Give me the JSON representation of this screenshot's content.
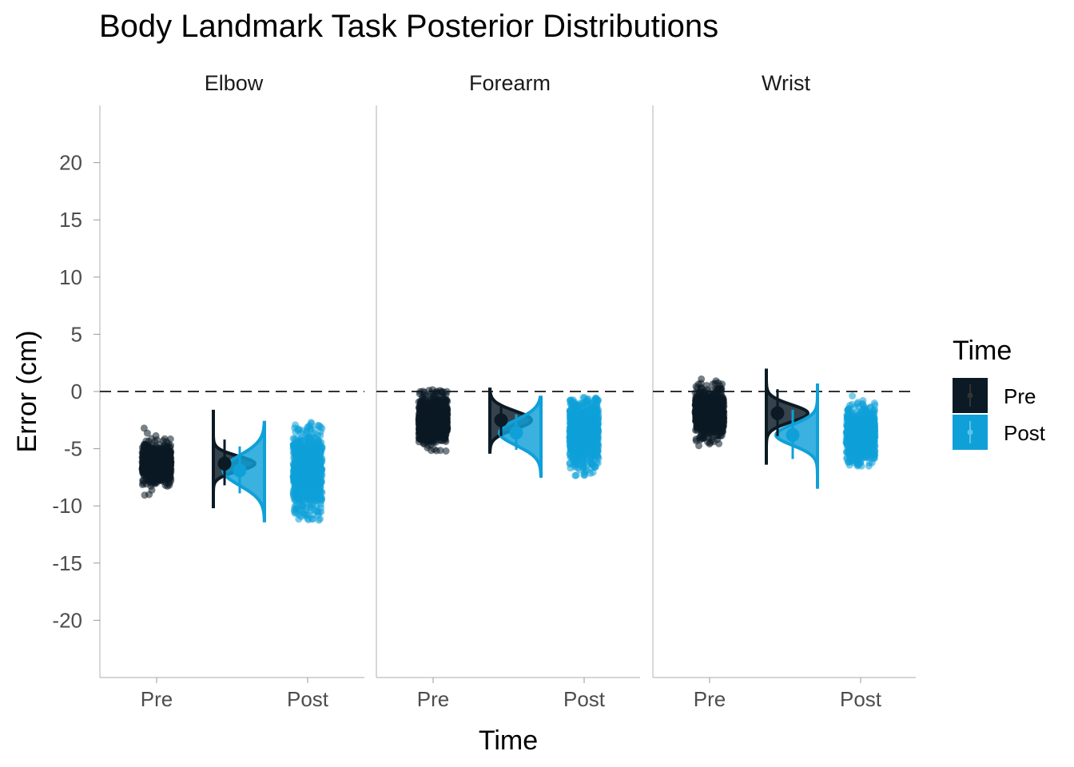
{
  "chart_data": {
    "type": "raincloud",
    "title": "Body Landmark Task Posterior Distributions",
    "xlabel": "Time",
    "ylabel": "Error (cm)",
    "ylim": [
      -25,
      25
    ],
    "yticks": [
      20,
      15,
      10,
      5,
      0,
      -5,
      -10,
      -15,
      -20
    ],
    "reference_line": {
      "y": 0,
      "style": "dashed"
    },
    "categories": [
      "Pre",
      "Post"
    ],
    "legend": {
      "title": "Time",
      "entries": [
        "Pre",
        "Post"
      ],
      "position": "right"
    },
    "colors": {
      "Pre": "#0b1a24",
      "Post": "#0fa0d8"
    },
    "facets": [
      {
        "label": "Elbow",
        "series": [
          {
            "name": "Pre",
            "mean": -6.3,
            "sd": 0.65,
            "min": -10.2,
            "max": -1.6,
            "ci": [
              -8.2,
              -4.2
            ],
            "ci_inner": [
              -6.9,
              -5.7
            ]
          },
          {
            "name": "Post",
            "mean": -6.9,
            "sd": 1.3,
            "min": -11.3,
            "max": -2.7,
            "ci": [
              -8.9,
              -4.8
            ],
            "ci_inner": [
              -7.5,
              -6.3
            ]
          }
        ]
      },
      {
        "label": "Forearm",
        "series": [
          {
            "name": "Pre",
            "mean": -2.5,
            "sd": 0.8,
            "min": -5.3,
            "max": 0.2,
            "ci": [
              -3.9,
              -1.2
            ],
            "ci_inner": [
              -3.0,
              -2.0
            ]
          },
          {
            "name": "Post",
            "mean": -3.6,
            "sd": 1.1,
            "min": -7.4,
            "max": -0.5,
            "ci": [
              -5.1,
              -2.0
            ],
            "ci_inner": [
              -4.1,
              -3.1
            ]
          }
        ]
      },
      {
        "label": "Wrist",
        "series": [
          {
            "name": "Pre",
            "mean": -1.9,
            "sd": 0.75,
            "min": -6.4,
            "max": 2.0,
            "ci": [
              -3.9,
              0.2
            ],
            "ci_inner": [
              -2.5,
              -1.3
            ]
          },
          {
            "name": "Post",
            "mean": -3.8,
            "sd": 0.9,
            "min": -8.5,
            "max": 0.7,
            "ci": [
              -5.9,
              -1.6
            ],
            "ci_inner": [
              -4.4,
              -3.2
            ]
          }
        ]
      }
    ]
  }
}
